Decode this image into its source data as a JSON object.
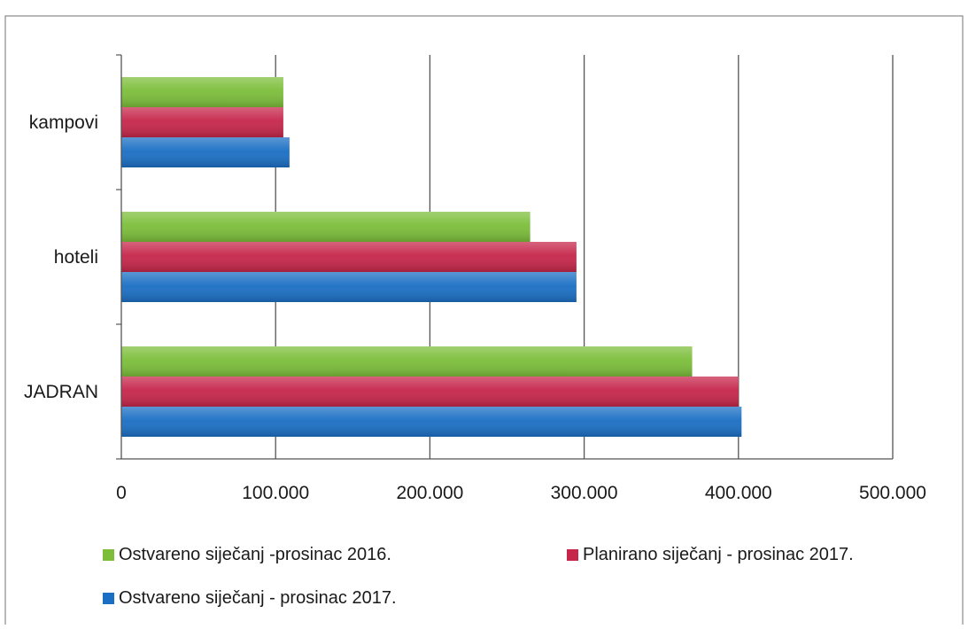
{
  "chart_data": {
    "type": "bar",
    "orientation": "horizontal",
    "title": "",
    "xlabel": "",
    "ylabel": "",
    "categories": [
      "JADRAN",
      "hoteli",
      "kampovi"
    ],
    "series": [
      {
        "name": "Ostvareno siječanj -prosinac 2016.",
        "color": "#7cbe3a",
        "values": [
          370000,
          265000,
          105000
        ]
      },
      {
        "name": "Planirano siječanj - prosinac 2017.",
        "color": "#c6264a",
        "values": [
          400000,
          295000,
          105000
        ]
      },
      {
        "name": "Ostvareno siječanj - prosinac 2017.",
        "color": "#1a6fc4",
        "values": [
          402000,
          295000,
          109000
        ]
      }
    ],
    "xlim": [
      0,
      500000
    ],
    "xticks": [
      0,
      100000,
      200000,
      300000,
      400000,
      500000
    ],
    "xtick_labels": [
      "0",
      "100.000",
      "200.000",
      "300.000",
      "400.000",
      "500.000"
    ],
    "grid": "vertical-major",
    "legend_position": "bottom"
  }
}
